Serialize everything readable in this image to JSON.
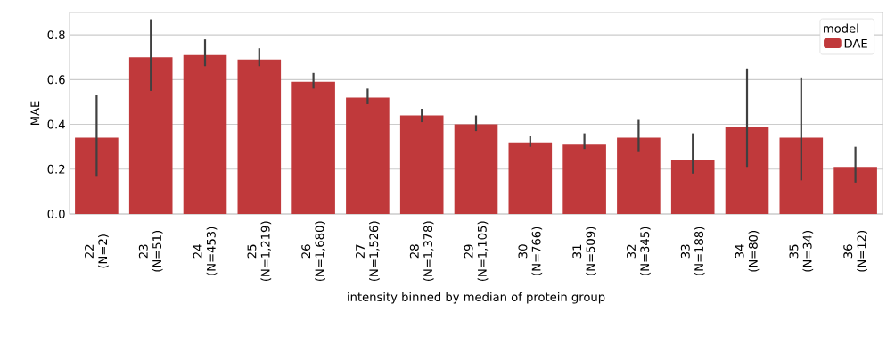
{
  "chart_data": {
    "type": "bar",
    "xlabel": "intensity binned by median of protein group",
    "ylabel": "MAE",
    "legend_title": "model",
    "categories": [
      "22 (N=2)",
      "23 (N=51)",
      "24 (N=453)",
      "25 (N=1,219)",
      "26 (N=1,680)",
      "27 (N=1,526)",
      "28 (N=1,378)",
      "29 (N=1,105)",
      "30 (N=766)",
      "31 (N=509)",
      "32 (N=345)",
      "33 (N=188)",
      "34 (N=80)",
      "35 (N=34)",
      "36 (N=12)"
    ],
    "series": [
      {
        "name": "DAE",
        "color": "#c0393b",
        "values": [
          0.34,
          0.7,
          0.71,
          0.69,
          0.59,
          0.52,
          0.44,
          0.4,
          0.32,
          0.31,
          0.34,
          0.24,
          0.39,
          0.34,
          0.21
        ],
        "errors": [
          [
            0.17,
            0.53
          ],
          [
            0.55,
            0.87
          ],
          [
            0.66,
            0.78
          ],
          [
            0.66,
            0.74
          ],
          [
            0.56,
            0.63
          ],
          [
            0.49,
            0.56
          ],
          [
            0.41,
            0.47
          ],
          [
            0.37,
            0.44
          ],
          [
            0.3,
            0.35
          ],
          [
            0.29,
            0.36
          ],
          [
            0.28,
            0.42
          ],
          [
            0.18,
            0.36
          ],
          [
            0.21,
            0.65
          ],
          [
            0.15,
            0.61
          ],
          [
            0.14,
            0.3
          ]
        ]
      }
    ],
    "ylim": [
      0,
      0.9
    ],
    "yticks": [
      {
        "value": 0,
        "label": "0.0"
      },
      0.2,
      0.4,
      0.6,
      0.8
    ],
    "grid": "y",
    "legend": "top right"
  }
}
